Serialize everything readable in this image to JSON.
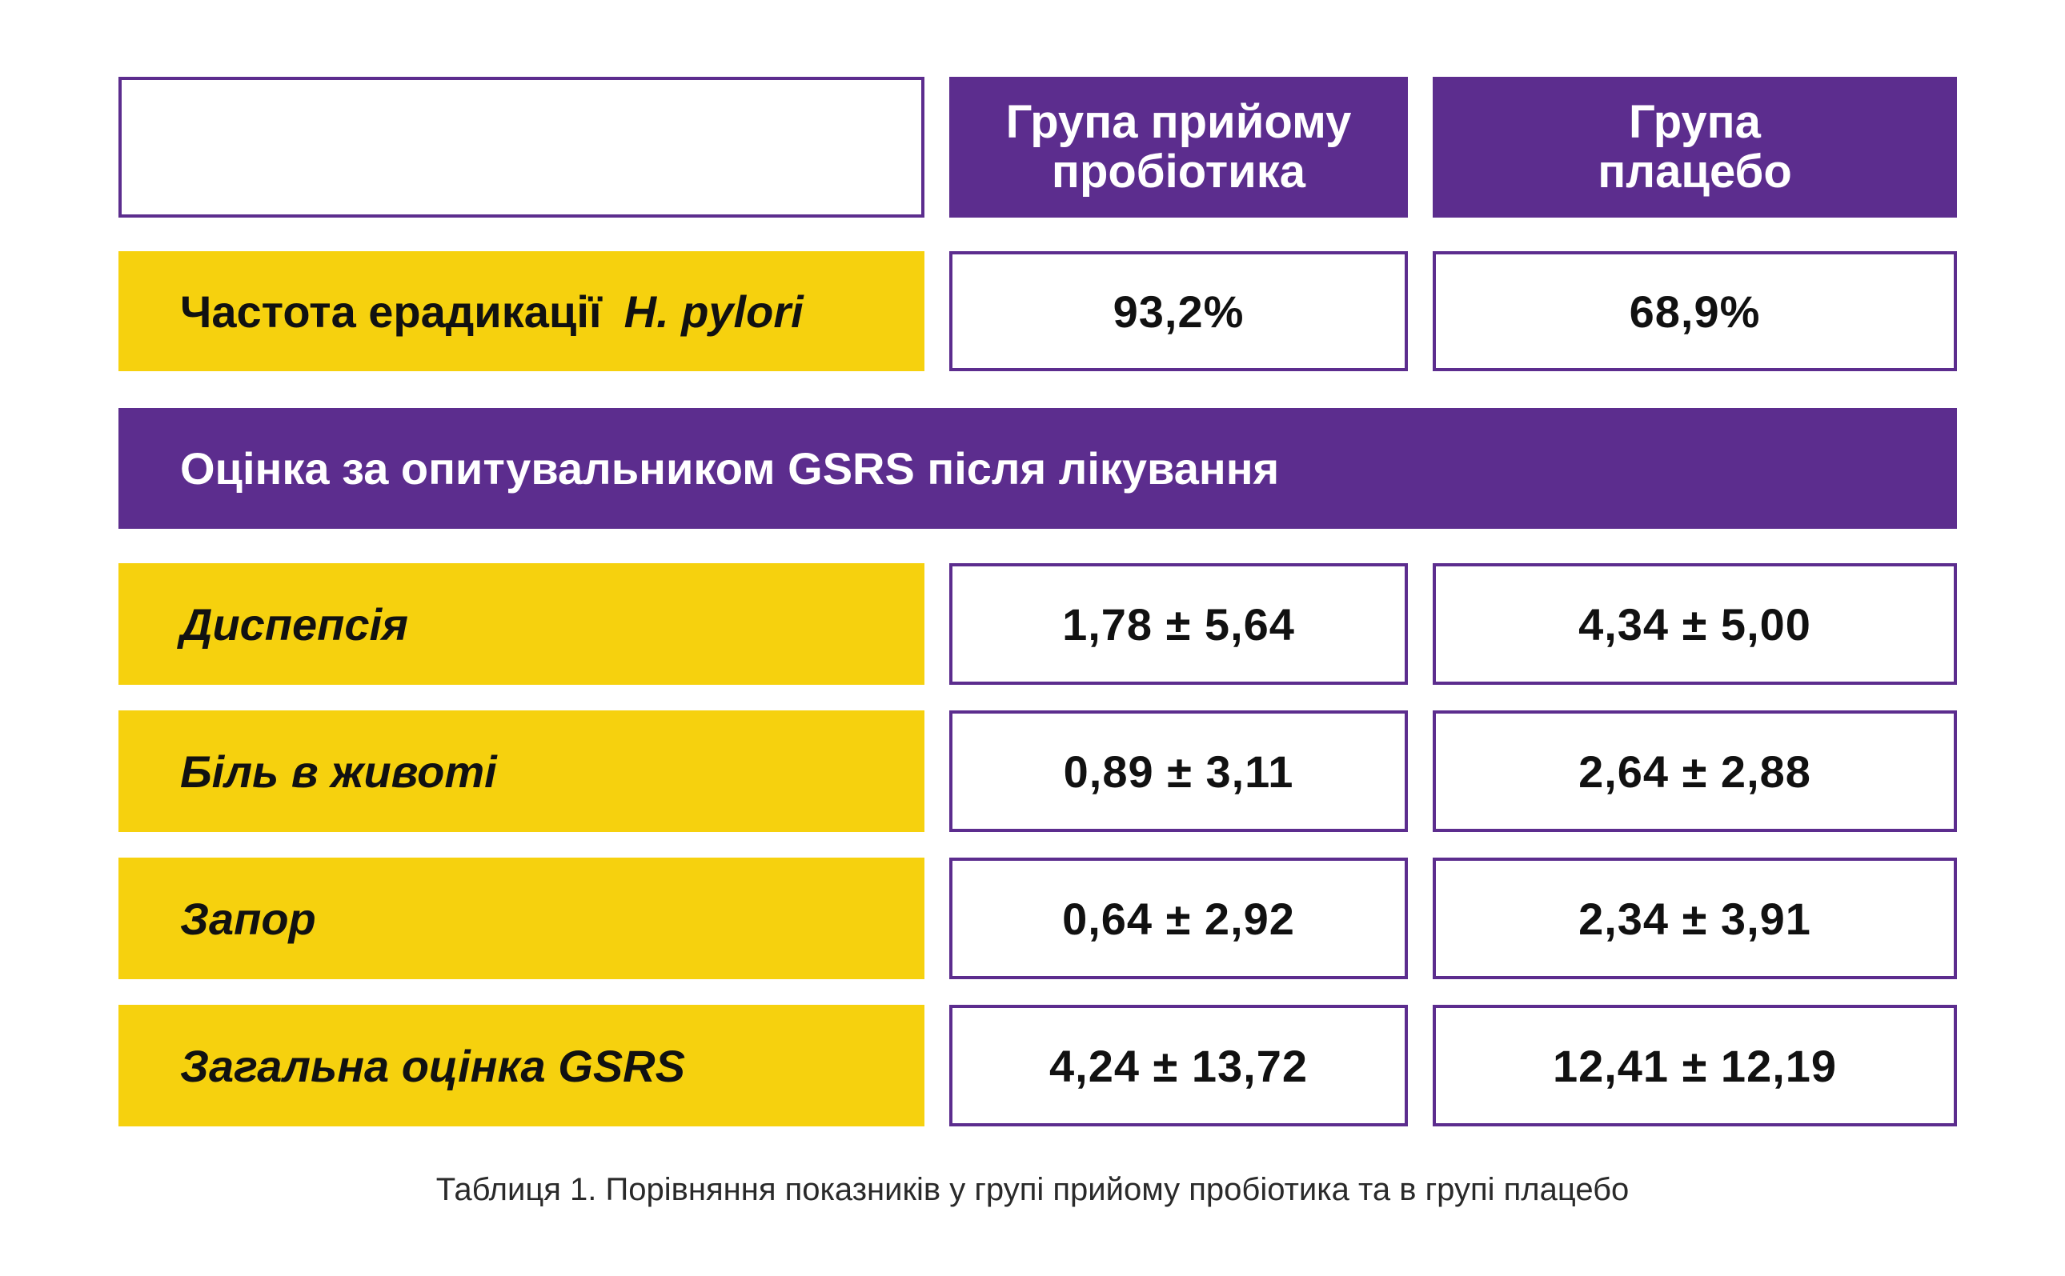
{
  "header": {
    "empty_cell": "",
    "probiotic_group": "Група прийому\nпробіотика",
    "placebo_group": "Група\nплацебо"
  },
  "eradication": {
    "label": "Частота ерадикації",
    "label_species": "H. pylori",
    "probiotic": "93,2%",
    "placebo": "68,9%"
  },
  "section_title": "Оцінка за опитувальником GSRS після лікування",
  "rows": [
    {
      "label": "Диспепсія",
      "probiotic": "1,78 ± 5,64",
      "placebo": "4,34 ± 5,00"
    },
    {
      "label": "Біль в животі",
      "probiotic": "0,89 ± 3,11",
      "placebo": "2,64 ± 2,88"
    },
    {
      "label": "Запор",
      "probiotic": "0,64 ± 2,92",
      "placebo": "2,34 ± 3,91"
    },
    {
      "label": "Загальна оцінка GSRS",
      "probiotic": "4,24 ± 13,72",
      "placebo": "12,41 ± 12,19"
    }
  ],
  "caption": "Таблиця 1. Порівняння показників у групі прийому пробіотика та в групі плацебо",
  "colors": {
    "purple": "#5c2d8e",
    "yellow": "#f6d10e",
    "white": "#ffffff",
    "text": "#111111"
  }
}
